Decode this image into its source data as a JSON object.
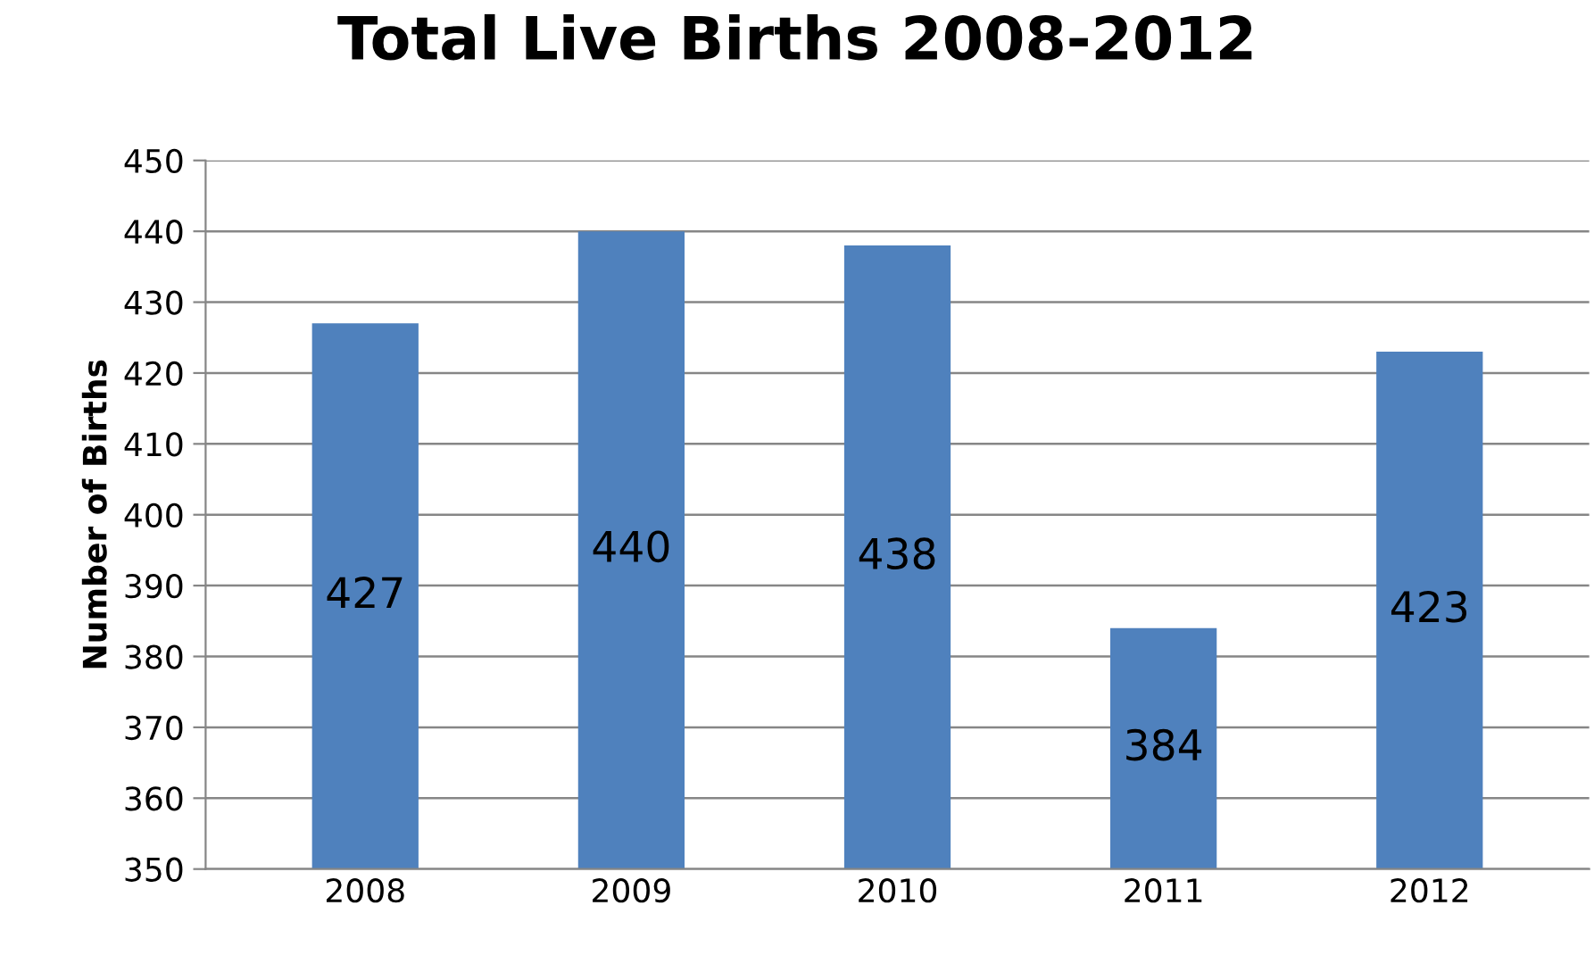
{
  "chart_data": {
    "type": "bar",
    "title": "Total Live Births 2008-2012",
    "ylabel": "Number of Births",
    "categories": [
      "2008",
      "2009",
      "2010",
      "2011",
      "2012"
    ],
    "values": [
      427,
      440,
      438,
      384,
      423
    ],
    "color": "#4f81bd",
    "ylim": [
      350,
      450
    ],
    "yticks": [
      350,
      360,
      370,
      380,
      390,
      400,
      410,
      420,
      430,
      440,
      450
    ],
    "grid": "y",
    "data_labels": true
  }
}
